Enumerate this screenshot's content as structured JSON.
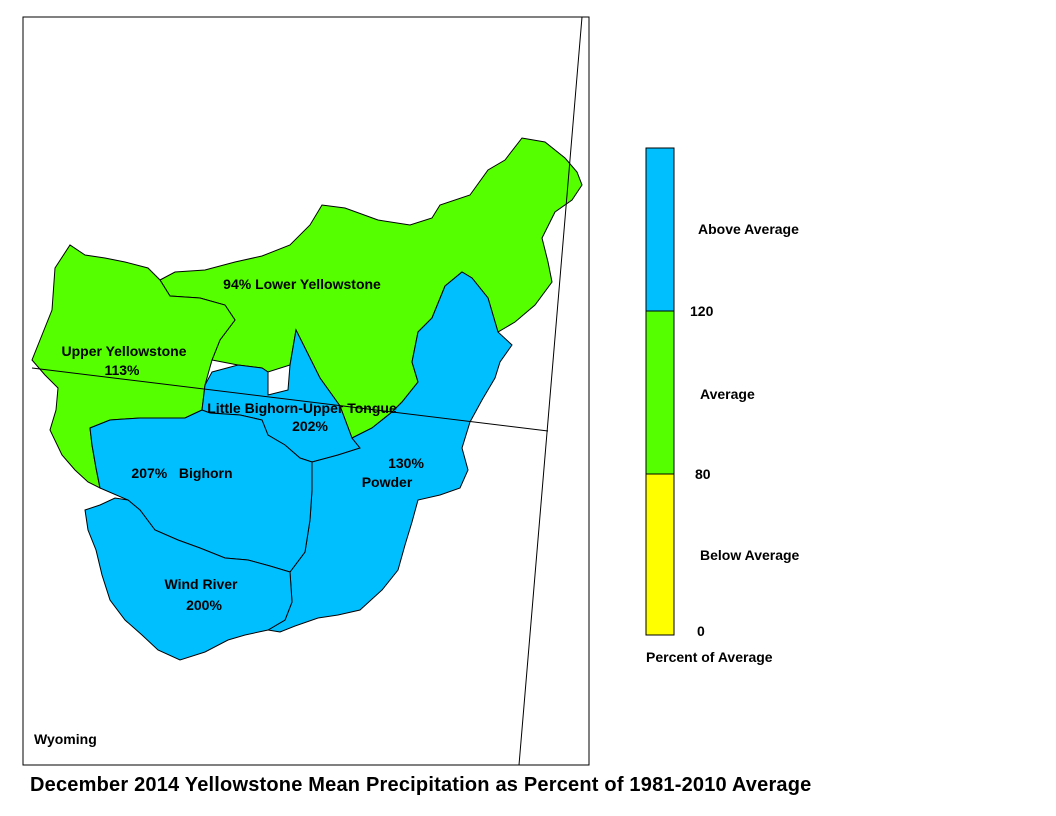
{
  "title": "December 2014 Yellowstone Mean Precipitation as Percent of 1981-2010 Average",
  "state_label": "Wyoming",
  "colors": {
    "above": "#00BFFF",
    "average": "#55FF00",
    "below": "#FFFF00",
    "border": "#000000"
  },
  "regions": [
    {
      "name_line": "94%  Lower Yellowstone",
      "category": "average"
    },
    {
      "name_line": "Upper Yellowstone",
      "pct_line": "113%",
      "category": "average"
    },
    {
      "name_line": "Little Bighorn-Upper Tongue",
      "pct_line": "202%",
      "category": "above"
    },
    {
      "name_line": "207%   Bighorn",
      "category": "above"
    },
    {
      "pct_line": "130%",
      "name_line": "Powder",
      "category": "above"
    },
    {
      "name_line": "Wind River",
      "pct_line": "200%",
      "category": "above"
    }
  ],
  "legend": {
    "categories": [
      {
        "label": "Above Average",
        "color": "#00BFFF"
      },
      {
        "label": "Average",
        "color": "#55FF00"
      },
      {
        "label": "Below Average",
        "color": "#FFFF00"
      }
    ],
    "breaks": [
      "120",
      "80",
      "0"
    ],
    "caption": "Percent of Average"
  }
}
